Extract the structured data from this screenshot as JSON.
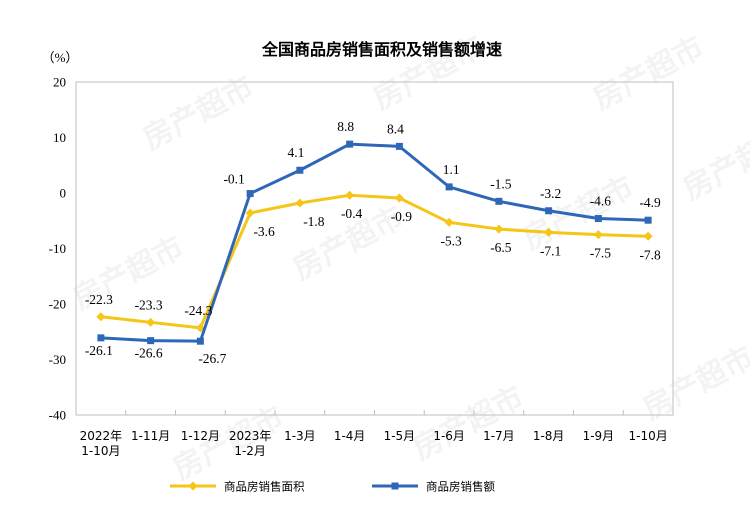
{
  "chart_data": {
    "type": "line",
    "title": "全国商品房销售面积及销售额增速",
    "y_unit_label": "（%）",
    "ylim": [
      -40,
      20
    ],
    "yticks": [
      20,
      10,
      0,
      -10,
      -20,
      -30,
      -40
    ],
    "categories": [
      [
        "2022年",
        "1-10月"
      ],
      [
        "1-11月"
      ],
      [
        "1-12月"
      ],
      [
        "2023年",
        "1-2月"
      ],
      [
        "1-3月"
      ],
      [
        "1-4月"
      ],
      [
        "1-5月"
      ],
      [
        "1-6月"
      ],
      [
        "1-7月"
      ],
      [
        "1-8月"
      ],
      [
        "1-9月"
      ],
      [
        "1-10月"
      ]
    ],
    "series": [
      {
        "name": "商品房销售面积",
        "color": "#f5c518",
        "values": [
          -22.3,
          -23.3,
          -24.3,
          -3.6,
          -1.8,
          -0.4,
          -0.9,
          -5.3,
          -6.5,
          -7.1,
          -7.5,
          -7.8
        ],
        "labels": [
          "-22.3",
          "-23.3",
          "-24.3",
          "-3.6",
          "-1.8",
          "-0.4",
          "-0.9",
          "-5.3",
          "-6.5",
          "-7.1",
          "-7.5",
          "-7.8"
        ]
      },
      {
        "name": "商品房销售额",
        "color": "#2f67b8",
        "values": [
          -26.1,
          -26.6,
          -26.7,
          -0.1,
          4.1,
          8.8,
          8.4,
          1.1,
          -1.5,
          -3.2,
          -4.6,
          -4.9
        ],
        "labels": [
          "-26.1",
          "-26.6",
          "-26.7",
          "-0.1",
          "4.1",
          "8.8",
          "8.4",
          "1.1",
          "-1.5",
          "-3.2",
          "-4.6",
          "-4.9"
        ]
      }
    ],
    "grid": false,
    "legend": "bottom"
  },
  "watermark": "房产超市"
}
